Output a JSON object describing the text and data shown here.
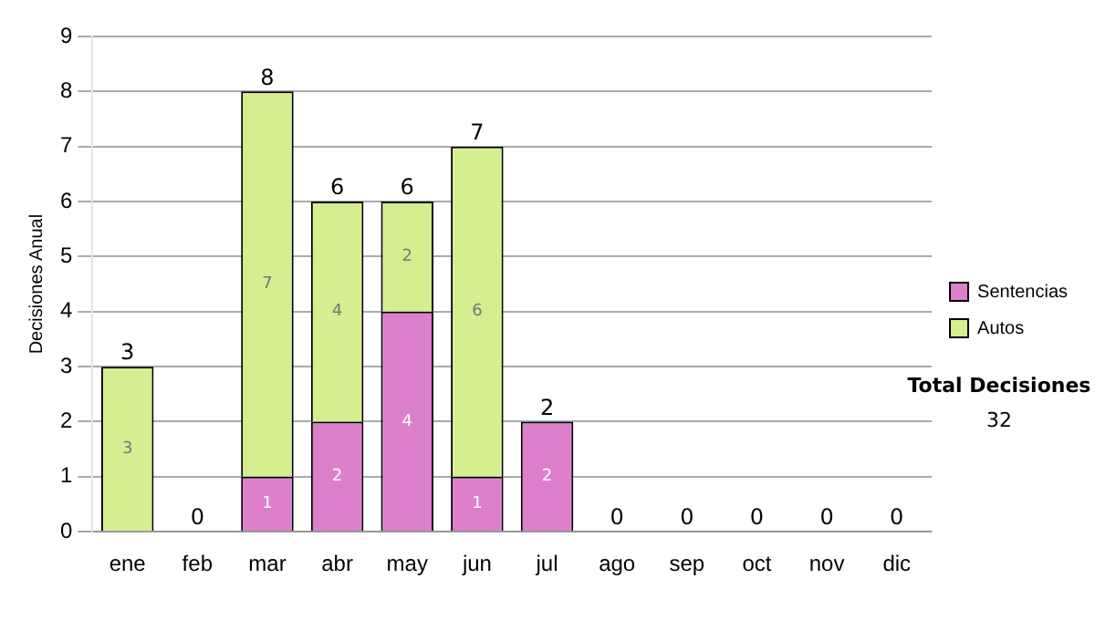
{
  "chart_data": {
    "type": "bar",
    "stacked": true,
    "ylabel": "Decisiones Anual",
    "categories": [
      "ene",
      "feb",
      "mar",
      "abr",
      "may",
      "jun",
      "jul",
      "ago",
      "sep",
      "oct",
      "nov",
      "dic"
    ],
    "series": [
      {
        "name": "Sentencias",
        "color": "#dd80cc",
        "values": [
          0,
          0,
          1,
          2,
          4,
          1,
          2,
          0,
          0,
          0,
          0,
          0
        ],
        "value_labels": [
          null,
          null,
          "1",
          "2",
          "4",
          "1",
          "2",
          null,
          null,
          null,
          null,
          null
        ]
      },
      {
        "name": "Autos",
        "color": "#d4ee90",
        "values": [
          3,
          0,
          7,
          4,
          2,
          6,
          0,
          0,
          0,
          0,
          0,
          0
        ],
        "value_labels": [
          "3",
          null,
          "7",
          "4",
          "2",
          "6",
          null,
          null,
          null,
          null,
          null,
          null
        ]
      }
    ],
    "totals": [
      "3",
      "0",
      "8",
      "6",
      "6",
      "7",
      "2",
      "0",
      "0",
      "0",
      "0",
      "0"
    ],
    "ylim": [
      0,
      9
    ],
    "yticks": [
      0,
      1,
      2,
      3,
      4,
      5,
      6,
      7,
      8,
      9
    ],
    "grid": "y",
    "legend": "right",
    "annotations": [
      "Total Decisiones",
      "32"
    ]
  }
}
